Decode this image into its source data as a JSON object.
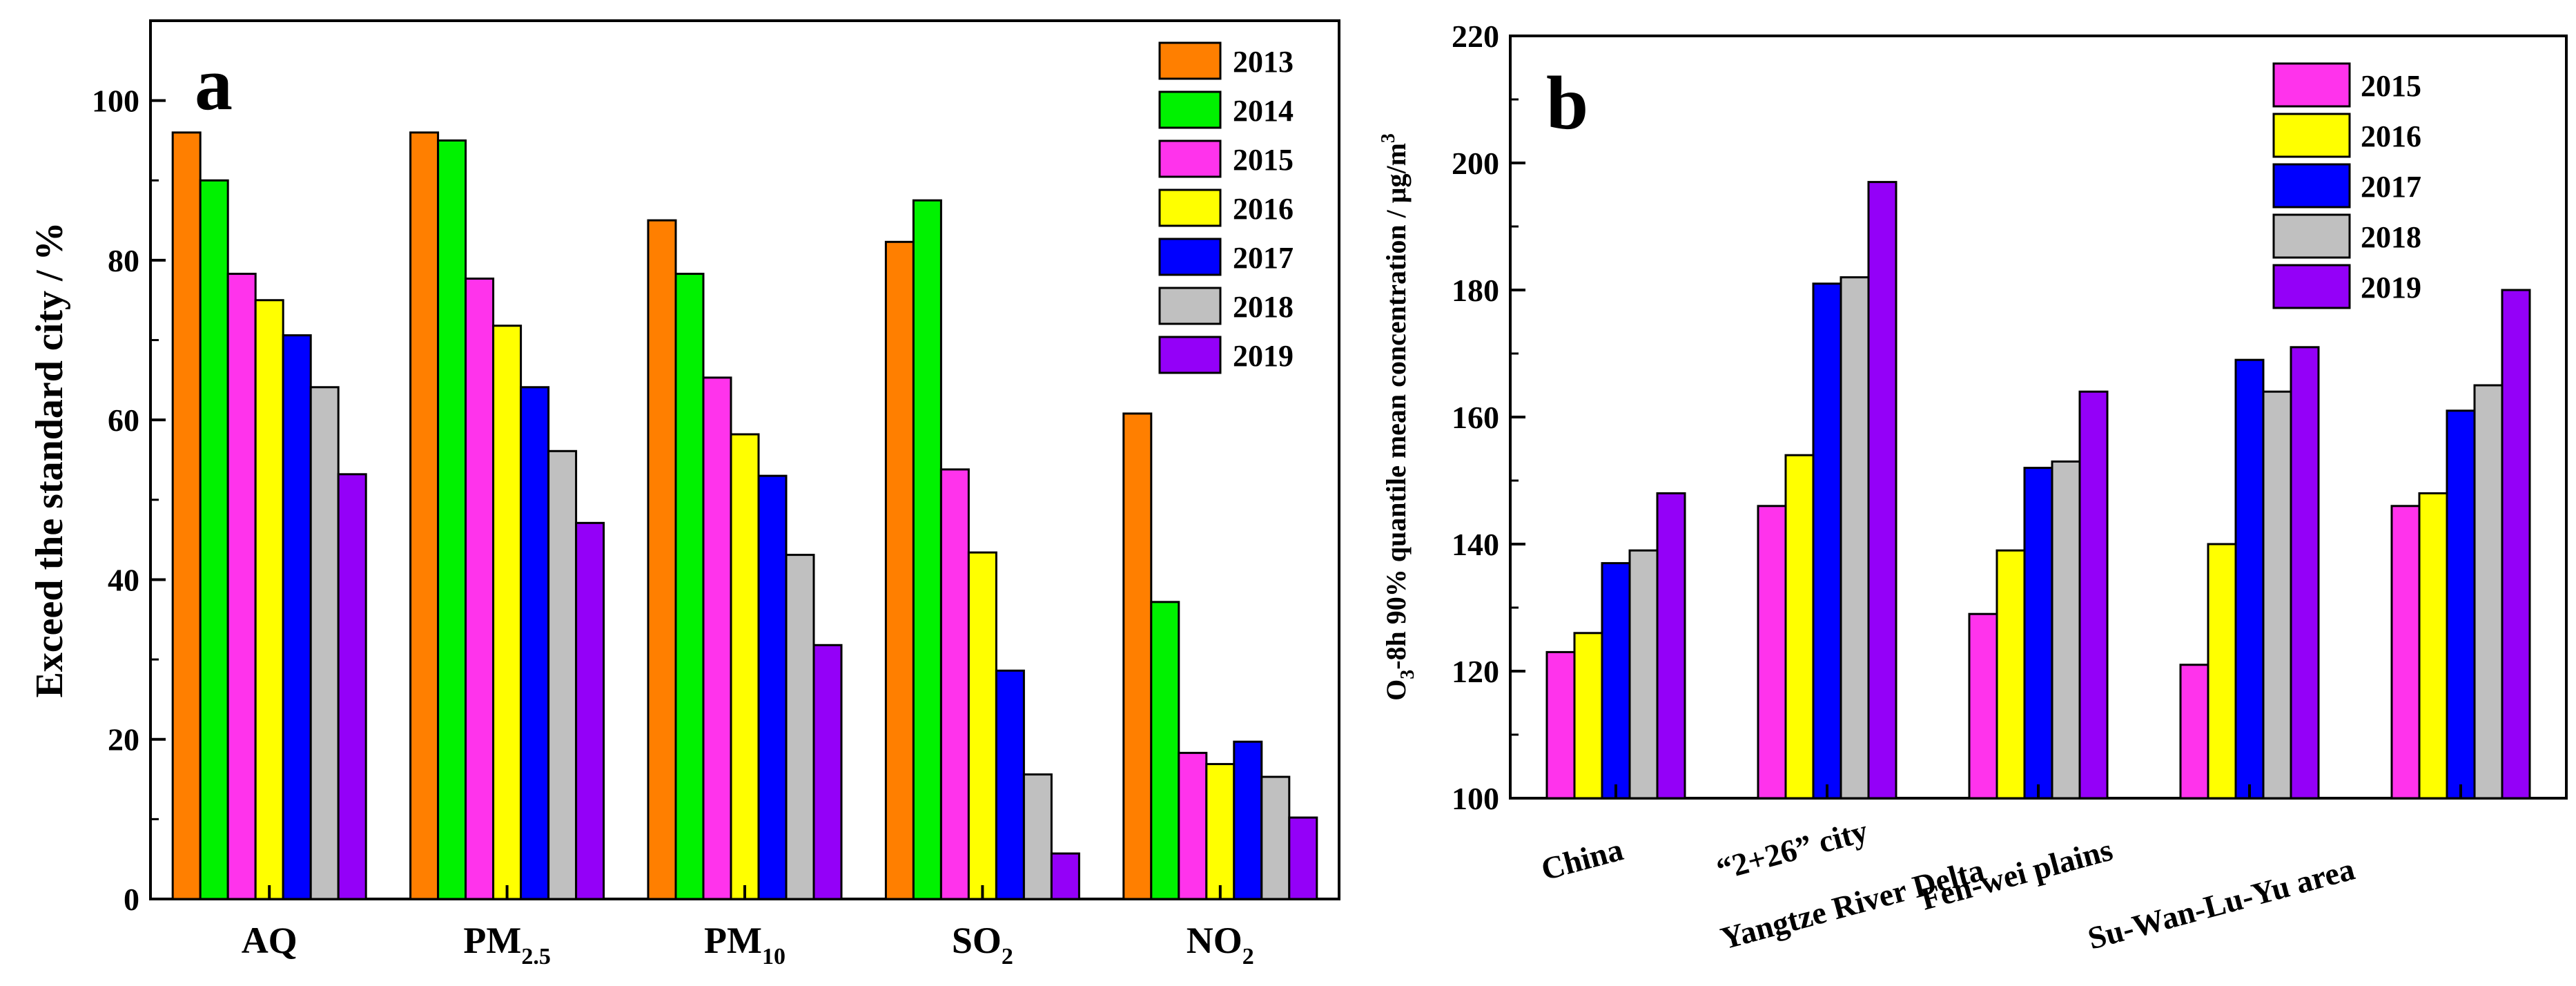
{
  "chart_data": [
    {
      "panel_label": "a",
      "type": "bar",
      "ylabel": "Exceed the standard city / %",
      "ylim": [
        0,
        110
      ],
      "yticks": [
        "0",
        "20",
        "40",
        "60",
        "80",
        "100"
      ],
      "categories": [
        {
          "base": "AQ",
          "sub": ""
        },
        {
          "base": "PM",
          "sub": "2.5"
        },
        {
          "base": "PM",
          "sub": "10"
        },
        {
          "base": "SO",
          "sub": "2"
        },
        {
          "base": "NO",
          "sub": "2"
        }
      ],
      "legend_position": "top-right",
      "series": [
        {
          "name": "2013",
          "color": "#FF7F00",
          "values": [
            96,
            96,
            85,
            82.3,
            60.8
          ]
        },
        {
          "name": "2014",
          "color": "#00F200",
          "values": [
            90,
            95,
            78.3,
            87.5,
            37.2
          ]
        },
        {
          "name": "2015",
          "color": "#FF33EC",
          "values": [
            78.3,
            77.7,
            65.3,
            53.8,
            18.3
          ]
        },
        {
          "name": "2016",
          "color": "#FFFF00",
          "values": [
            75,
            71.8,
            58.2,
            43.4,
            16.9
          ]
        },
        {
          "name": "2017",
          "color": "#0000FF",
          "values": [
            70.6,
            64.1,
            53,
            28.6,
            19.7
          ]
        },
        {
          "name": "2018",
          "color": "#C0C0C0",
          "values": [
            64.1,
            56.1,
            43.1,
            15.6,
            15.3
          ]
        },
        {
          "name": "2019",
          "color": "#9400F8",
          "values": [
            53.2,
            47.1,
            31.8,
            5.7,
            10.2
          ]
        }
      ]
    },
    {
      "panel_label": "b",
      "type": "bar",
      "ylabel_parts": [
        "O",
        "3",
        "-8h 90% quantile mean concentration / μg/m",
        "3"
      ],
      "ylim": [
        100,
        220
      ],
      "yticks": [
        "100",
        "120",
        "140",
        "160",
        "180",
        "200",
        "220"
      ],
      "categories": [
        "China",
        "“2+26” city",
        "Yangtze River Delta",
        "Fen-wei plains",
        "Su-Wan-Lu-Yu area"
      ],
      "legend_position": "top-right",
      "series": [
        {
          "name": "2015",
          "color": "#FF33EC",
          "values": [
            123,
            146,
            129,
            121,
            146
          ]
        },
        {
          "name": "2016",
          "color": "#FFFF00",
          "values": [
            126,
            154,
            139,
            140,
            148
          ]
        },
        {
          "name": "2017",
          "color": "#0000FF",
          "values": [
            137,
            181,
            152,
            169,
            161
          ]
        },
        {
          "name": "2018",
          "color": "#C0C0C0",
          "values": [
            139,
            182,
            153,
            164,
            165
          ]
        },
        {
          "name": "2019",
          "color": "#9400F8",
          "values": [
            148,
            197,
            164,
            171,
            180
          ]
        }
      ]
    }
  ]
}
